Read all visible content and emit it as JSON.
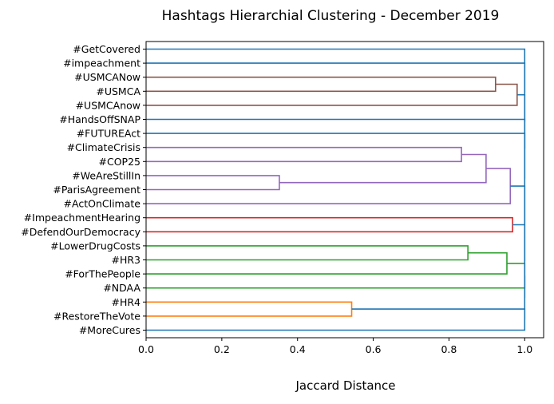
{
  "chart_data": {
    "type": "dendrogram",
    "title": "Hashtags Hierarchial Clustering - December 2019",
    "xlabel": "Jaccard Distance",
    "ylabel": "",
    "xlim": [
      0,
      1.05
    ],
    "xticks": [
      "0.0",
      "0.2",
      "0.4",
      "0.6",
      "0.8",
      "1.0"
    ],
    "xtick_values": [
      0.0,
      0.2,
      0.4,
      0.6,
      0.8,
      1.0
    ],
    "grid": false,
    "orientation": "left",
    "leaves": [
      "#GetCovered",
      "#impeachment",
      "#USMCANow",
      "#USMCA",
      "#USMCAnow",
      "#HandsOffSNAP",
      "#FUTUREAct",
      "#ClimateCrisis",
      "#COP25",
      "#WeAreStillIn",
      "#ParisAgreement",
      "#ActOnClimate",
      "#ImpeachmentHearing",
      "#DefendOurDemocracy",
      "#LowerDrugCosts",
      "#HR3",
      "#ForThePeople",
      "#NDAA",
      "#HR4",
      "#RestoreTheVote",
      "#MoreCures"
    ],
    "colors": {
      "above_threshold": "#1f77b4",
      "usmca": "#8c564b",
      "climate": "#9467bd",
      "impeachment": "#d62728",
      "drugcosts": "#2ca02c",
      "voting": "#ff7f0e"
    },
    "merges": [
      {
        "id": "A",
        "children": [
          "#USMCANow",
          "#USMCA"
        ],
        "distance": 0.923,
        "color": "usmca"
      },
      {
        "id": "B",
        "children": [
          "A",
          "#USMCAnow"
        ],
        "distance": 0.98,
        "color": "usmca"
      },
      {
        "id": "C",
        "children": [
          "#WeAreStillIn",
          "#ParisAgreement"
        ],
        "distance": 0.352,
        "color": "climate"
      },
      {
        "id": "D",
        "children": [
          "#ClimateCrisis",
          "#COP25"
        ],
        "distance": 0.833,
        "color": "climate"
      },
      {
        "id": "E",
        "children": [
          "D",
          "C"
        ],
        "distance": 0.898,
        "color": "climate"
      },
      {
        "id": "F",
        "children": [
          "E",
          "#ActOnClimate"
        ],
        "distance": 0.962,
        "color": "climate"
      },
      {
        "id": "G",
        "children": [
          "#ImpeachmentHearing",
          "#DefendOurDemocracy"
        ],
        "distance": 0.968,
        "color": "impeachment"
      },
      {
        "id": "H",
        "children": [
          "#LowerDrugCosts",
          "#HR3"
        ],
        "distance": 0.85,
        "color": "drugcosts"
      },
      {
        "id": "I",
        "children": [
          "H",
          "#ForThePeople"
        ],
        "distance": 0.953,
        "color": "drugcosts"
      },
      {
        "id": "J",
        "children": [
          "I",
          "#NDAA"
        ],
        "distance": 1.0,
        "color": "drugcosts"
      },
      {
        "id": "K",
        "children": [
          "#HR4",
          "#RestoreTheVote"
        ],
        "distance": 0.543,
        "color": "voting"
      },
      {
        "id": "L",
        "children": [
          "K",
          "#MoreCures"
        ],
        "distance": 1.0,
        "color": "above_threshold"
      },
      {
        "id": "M",
        "children": [
          "J",
          "L"
        ],
        "distance": 1.0,
        "color": "above_threshold"
      },
      {
        "id": "N",
        "children": [
          "G",
          "M"
        ],
        "distance": 1.0,
        "color": "above_threshold"
      },
      {
        "id": "O",
        "children": [
          "F",
          "N"
        ],
        "distance": 1.0,
        "color": "above_threshold"
      },
      {
        "id": "P",
        "children": [
          "#FUTUREAct",
          "O"
        ],
        "distance": 1.0,
        "color": "above_threshold"
      },
      {
        "id": "Q",
        "children": [
          "#HandsOffSNAP",
          "P"
        ],
        "distance": 1.0,
        "color": "above_threshold"
      },
      {
        "id": "R",
        "children": [
          "B",
          "Q"
        ],
        "distance": 1.0,
        "color": "above_threshold"
      },
      {
        "id": "S",
        "children": [
          "#impeachment",
          "R"
        ],
        "distance": 1.0,
        "color": "above_threshold"
      },
      {
        "id": "T",
        "children": [
          "#GetCovered",
          "S"
        ],
        "distance": 1.0,
        "color": "above_threshold"
      }
    ]
  }
}
